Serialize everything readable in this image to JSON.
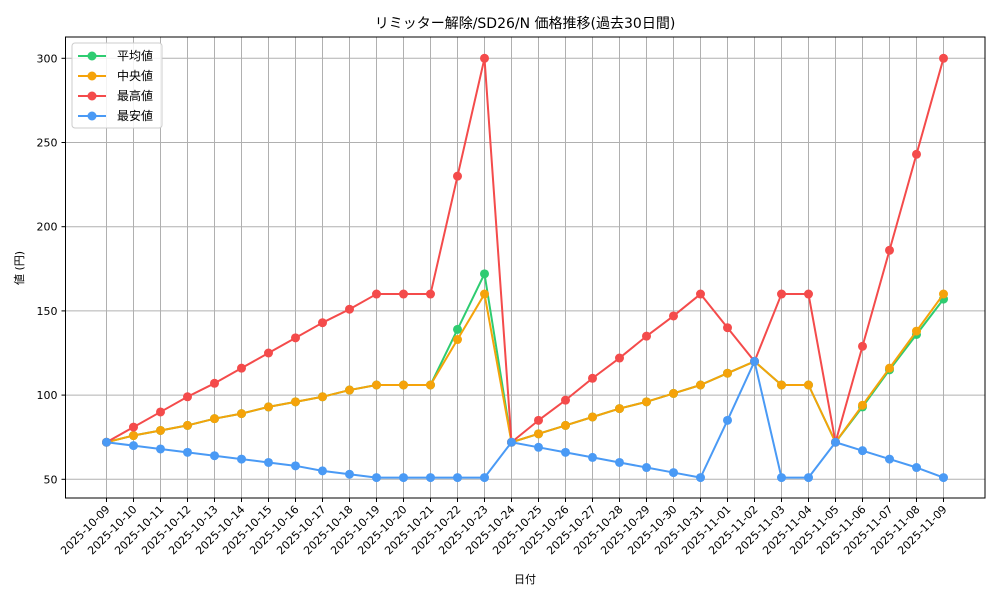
{
  "chart_data": {
    "type": "line",
    "title": "リミッター解除/SD26/N 価格推移(過去30日間)",
    "xlabel": "日付",
    "ylabel": "値 (円)",
    "ylim": [
      38,
      312
    ],
    "yticks": [
      50,
      100,
      150,
      200,
      250,
      300
    ],
    "grid": true,
    "legend_position": "upper left",
    "x": [
      "2025-10-09",
      "2025-10-10",
      "2025-10-11",
      "2025-10-12",
      "2025-10-13",
      "2025-10-14",
      "2025-10-15",
      "2025-10-16",
      "2025-10-17",
      "2025-10-18",
      "2025-10-19",
      "2025-10-20",
      "2025-10-21",
      "2025-10-22",
      "2025-10-23",
      "2025-10-24",
      "2025-10-25",
      "2025-10-26",
      "2025-10-27",
      "2025-10-28",
      "2025-10-29",
      "2025-10-30",
      "2025-10-31",
      "2025-11-01",
      "2025-11-02",
      "2025-11-03",
      "2025-11-04",
      "2025-11-05",
      "2025-11-06",
      "2025-11-07",
      "2025-11-08",
      "2025-11-09"
    ],
    "series": [
      {
        "name": "平均値",
        "color": "#2ecc71",
        "values": [
          72,
          76,
          79,
          82,
          86,
          89,
          93,
          96,
          99,
          103,
          106,
          106,
          106,
          139,
          172,
          72,
          77,
          82,
          87,
          92,
          96,
          101,
          106,
          113,
          120,
          106,
          106,
          72,
          93,
          115,
          136,
          157
        ]
      },
      {
        "name": "中央値",
        "color": "#f5a30a",
        "values": [
          72,
          76,
          79,
          82,
          86,
          89,
          93,
          96,
          99,
          103,
          106,
          106,
          106,
          133,
          160,
          72,
          77,
          82,
          87,
          92,
          96,
          101,
          106,
          113,
          120,
          106,
          106,
          72,
          94,
          116,
          138,
          160
        ]
      },
      {
        "name": "最高値",
        "color": "#f44b4b",
        "values": [
          72,
          81,
          90,
          99,
          107,
          116,
          125,
          134,
          143,
          151,
          160,
          160,
          160,
          230,
          300,
          72,
          85,
          97,
          110,
          122,
          135,
          147,
          160,
          140,
          120,
          160,
          160,
          72,
          129,
          186,
          243,
          300
        ]
      },
      {
        "name": "最安値",
        "color": "#4a9af5",
        "values": [
          72,
          70,
          68,
          66,
          64,
          62,
          60,
          58,
          55,
          53,
          51,
          51,
          51,
          51,
          51,
          72,
          69,
          66,
          63,
          60,
          57,
          54,
          51,
          85,
          120,
          51,
          51,
          72,
          67,
          62,
          57,
          51
        ]
      }
    ]
  },
  "legend": {
    "items": [
      {
        "label": "平均値"
      },
      {
        "label": "中央値"
      },
      {
        "label": "最高値"
      },
      {
        "label": "最安値"
      }
    ]
  }
}
